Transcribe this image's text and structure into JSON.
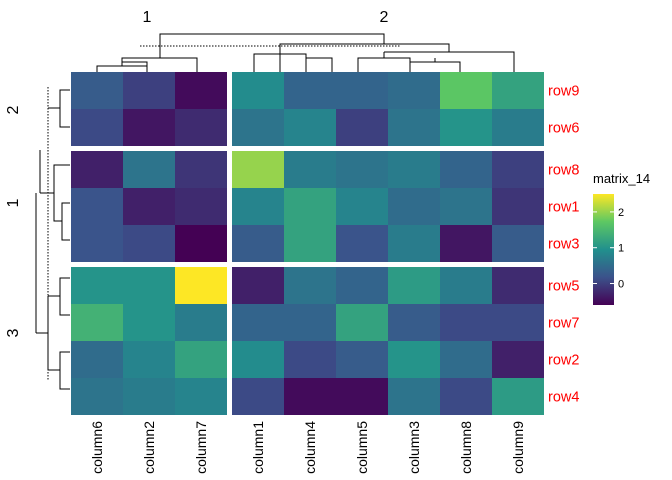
{
  "chart_data": {
    "type": "heatmap",
    "title": "",
    "legend_title": "matrix_14",
    "legend_ticks": [
      0,
      1,
      2
    ],
    "value_range": [
      -0.6,
      2.5
    ],
    "colors": {
      "scale": [
        "#440154",
        "#3b528b",
        "#21908d",
        "#5dc863",
        "#fde725"
      ],
      "row_label": "#ff0000",
      "dendrogram": "#000000"
    },
    "column_splits": [
      {
        "label": "1",
        "columns": [
          "column6",
          "column2",
          "column7"
        ]
      },
      {
        "label": "2",
        "columns": [
          "column1",
          "column4",
          "column5",
          "column3",
          "column8",
          "column9"
        ]
      }
    ],
    "row_splits": [
      {
        "label": "2",
        "rows": [
          "row9",
          "row6"
        ]
      },
      {
        "label": "1",
        "rows": [
          "row8",
          "row1",
          "row3"
        ]
      },
      {
        "label": "3",
        "rows": [
          "row5",
          "row7",
          "row2",
          "row4"
        ]
      }
    ],
    "columns": [
      "column6",
      "column2",
      "column7",
      "column1",
      "column4",
      "column5",
      "column3",
      "column8",
      "column9"
    ],
    "rows": [
      "row9",
      "row6",
      "row8",
      "row1",
      "row3",
      "row5",
      "row7",
      "row2",
      "row4"
    ],
    "values": [
      [
        0.3,
        0.0,
        -0.5,
        0.9,
        0.4,
        0.4,
        0.5,
        1.7,
        1.2
      ],
      [
        0.1,
        -0.4,
        -0.2,
        0.6,
        0.8,
        0.0,
        0.6,
        1.0,
        0.7
      ],
      [
        -0.3,
        0.6,
        -0.1,
        2.0,
        0.7,
        0.6,
        0.7,
        0.4,
        0.0
      ],
      [
        0.2,
        -0.3,
        -0.2,
        0.8,
        1.2,
        0.8,
        0.5,
        0.6,
        -0.1
      ],
      [
        0.2,
        0.1,
        -0.6,
        0.3,
        1.2,
        0.2,
        0.7,
        -0.4,
        0.3
      ],
      [
        1.0,
        1.0,
        2.5,
        -0.3,
        0.6,
        0.4,
        1.1,
        0.7,
        -0.2
      ],
      [
        1.4,
        1.0,
        0.7,
        0.4,
        0.4,
        1.2,
        0.3,
        0.1,
        0.1
      ],
      [
        0.5,
        0.8,
        1.2,
        0.9,
        0.1,
        0.3,
        1.0,
        0.5,
        -0.3
      ],
      [
        0.6,
        0.7,
        0.8,
        0.1,
        -0.5,
        -0.5,
        0.6,
        0.1,
        1.1
      ]
    ]
  }
}
